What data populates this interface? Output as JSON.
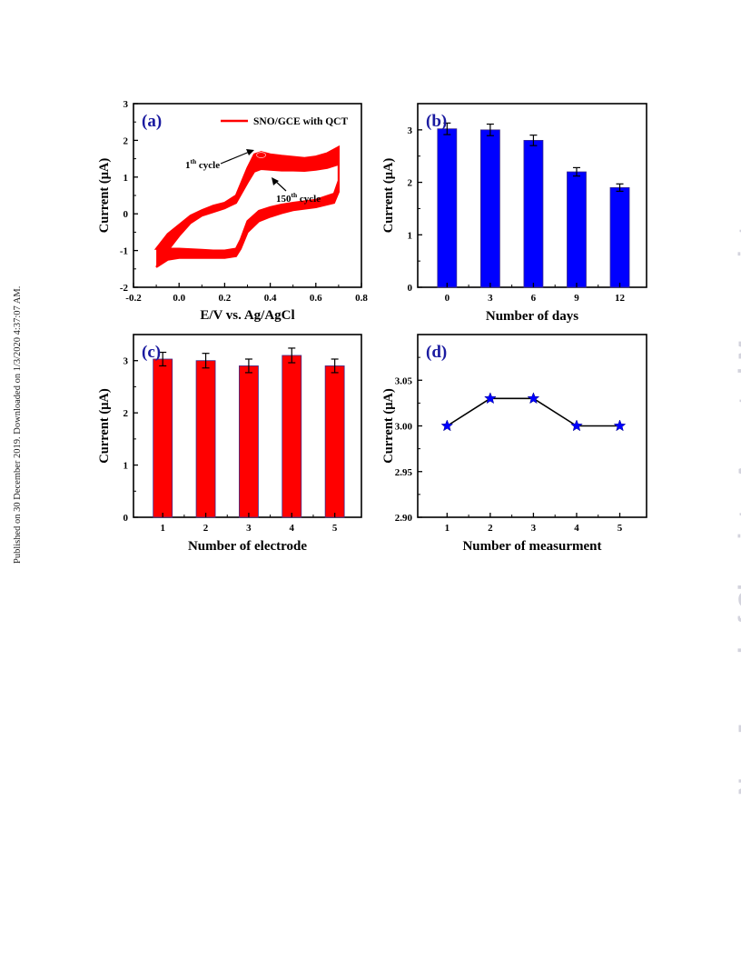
{
  "sidebar_note": "Published on 30 December 2019. Downloaded on 1/3/2020 4:37:07 AM.",
  "watermark": "New Journal of Chemistry Accepted Manuscript",
  "colors": {
    "red": "#ff0000",
    "blue": "#0000ff",
    "panel_label": "#1a1aa0",
    "axis": "#000000",
    "errbar": "#000000"
  },
  "chart_data": [
    {
      "panel": "(a)",
      "type": "line",
      "xlabel": "E/V vs. Ag/AgCl",
      "ylabel": "Current (μA)",
      "xlim": [
        -0.2,
        0.8
      ],
      "ylim": [
        -2,
        3
      ],
      "xticks": [
        -0.2,
        0.0,
        0.2,
        0.4,
        0.6,
        0.8
      ],
      "xtick_labels": [
        "-0.2",
        "0.0",
        "0.2",
        "0.4",
        "0.6",
        "0.8"
      ],
      "yticks": [
        -2,
        -1,
        0,
        1,
        2,
        3
      ],
      "ytick_labels": [
        "-2",
        "-1",
        "0",
        "1",
        "2",
        "3"
      ],
      "legend": "SNO/GCE with QCT",
      "legend_position": "top-right",
      "annotations": [
        {
          "sup": "th",
          "base": "1",
          "rest": " cycle"
        },
        {
          "sup": "th",
          "base": "150",
          "rest": " cycle"
        }
      ],
      "series": [
        {
          "name": "SNO/GCE with QCT",
          "upper_first": [
            [
              -0.1,
              -0.95
            ],
            [
              -0.05,
              -0.55
            ],
            [
              0.0,
              -0.3
            ],
            [
              0.05,
              -0.05
            ],
            [
              0.1,
              0.1
            ],
            [
              0.15,
              0.22
            ],
            [
              0.2,
              0.3
            ],
            [
              0.25,
              0.5
            ],
            [
              0.3,
              1.25
            ],
            [
              0.33,
              1.62
            ],
            [
              0.36,
              1.68
            ],
            [
              0.4,
              1.62
            ],
            [
              0.45,
              1.58
            ],
            [
              0.5,
              1.55
            ],
            [
              0.55,
              1.52
            ],
            [
              0.6,
              1.56
            ],
            [
              0.65,
              1.65
            ],
            [
              0.7,
              1.82
            ]
          ],
          "lower_first": [
            [
              0.7,
              1.75
            ],
            [
              0.7,
              0.9
            ],
            [
              0.68,
              0.55
            ],
            [
              0.6,
              0.38
            ],
            [
              0.5,
              0.3
            ],
            [
              0.45,
              0.25
            ],
            [
              0.4,
              0.18
            ],
            [
              0.35,
              0.08
            ],
            [
              0.3,
              -0.2
            ],
            [
              0.27,
              -0.7
            ],
            [
              0.25,
              -0.95
            ],
            [
              0.2,
              -1.0
            ],
            [
              0.15,
              -1.0
            ],
            [
              0.1,
              -0.98
            ],
            [
              0.0,
              -0.95
            ],
            [
              -0.05,
              -0.95
            ],
            [
              -0.1,
              -0.95
            ]
          ],
          "upper_last": [
            [
              -0.1,
              -1.45
            ],
            [
              -0.05,
              -1.0
            ],
            [
              0.0,
              -0.6
            ],
            [
              0.05,
              -0.25
            ],
            [
              0.1,
              -0.05
            ],
            [
              0.15,
              0.05
            ],
            [
              0.2,
              0.15
            ],
            [
              0.25,
              0.3
            ],
            [
              0.3,
              0.85
            ],
            [
              0.33,
              1.15
            ],
            [
              0.36,
              1.22
            ],
            [
              0.4,
              1.2
            ],
            [
              0.45,
              1.18
            ],
            [
              0.5,
              1.18
            ],
            [
              0.55,
              1.17
            ],
            [
              0.6,
              1.2
            ],
            [
              0.65,
              1.25
            ],
            [
              0.7,
              1.35
            ]
          ],
          "lower_last": [
            [
              0.7,
              1.3
            ],
            [
              0.7,
              0.6
            ],
            [
              0.68,
              0.3
            ],
            [
              0.6,
              0.18
            ],
            [
              0.5,
              0.1
            ],
            [
              0.45,
              0.02
            ],
            [
              0.4,
              -0.08
            ],
            [
              0.35,
              -0.2
            ],
            [
              0.3,
              -0.5
            ],
            [
              0.27,
              -0.95
            ],
            [
              0.25,
              -1.15
            ],
            [
              0.2,
              -1.2
            ],
            [
              0.15,
              -1.2
            ],
            [
              0.1,
              -1.2
            ],
            [
              0.0,
              -1.2
            ],
            [
              -0.05,
              -1.25
            ],
            [
              -0.1,
              -1.45
            ]
          ]
        }
      ]
    },
    {
      "panel": "(b)",
      "type": "bar",
      "xlabel": "Number of days",
      "ylabel": "Current (μA)",
      "categories": [
        "0",
        "3",
        "6",
        "9",
        "12"
      ],
      "values": [
        3.02,
        3.0,
        2.8,
        2.2,
        1.9
      ],
      "errors": [
        0.11,
        0.11,
        0.1,
        0.08,
        0.07
      ],
      "ylim": [
        0,
        3.5
      ],
      "yticks": [
        0,
        1,
        2,
        3
      ],
      "ytick_labels": [
        "0",
        "1",
        "2",
        "3"
      ],
      "color": "#0000ff"
    },
    {
      "panel": "(c)",
      "type": "bar",
      "xlabel": "Number of electrode",
      "ylabel": "Current (μA)",
      "categories": [
        "1",
        "2",
        "3",
        "4",
        "5"
      ],
      "values": [
        3.03,
        3.0,
        2.9,
        3.1,
        2.9
      ],
      "errors": [
        0.13,
        0.14,
        0.13,
        0.14,
        0.13
      ],
      "ylim": [
        0,
        3.5
      ],
      "yticks": [
        0,
        1,
        2,
        3
      ],
      "ytick_labels": [
        "0",
        "1",
        "2",
        "3"
      ],
      "color": "#ff0000"
    },
    {
      "panel": "(d)",
      "type": "line",
      "xlabel": "Number of measurment",
      "ylabel": "Current (μA)",
      "x": [
        1,
        2,
        3,
        4,
        5
      ],
      "y": [
        3.0,
        3.03,
        3.03,
        3.0,
        3.0
      ],
      "xticks": [
        "1",
        "2",
        "3",
        "4",
        "5"
      ],
      "ylim": [
        2.9,
        3.1
      ],
      "yticks": [
        2.9,
        2.95,
        3.0,
        3.05
      ],
      "ytick_labels": [
        "2.90",
        "2.95",
        "3.00",
        "3.05"
      ],
      "marker": "star",
      "marker_color": "#0000ff"
    }
  ]
}
